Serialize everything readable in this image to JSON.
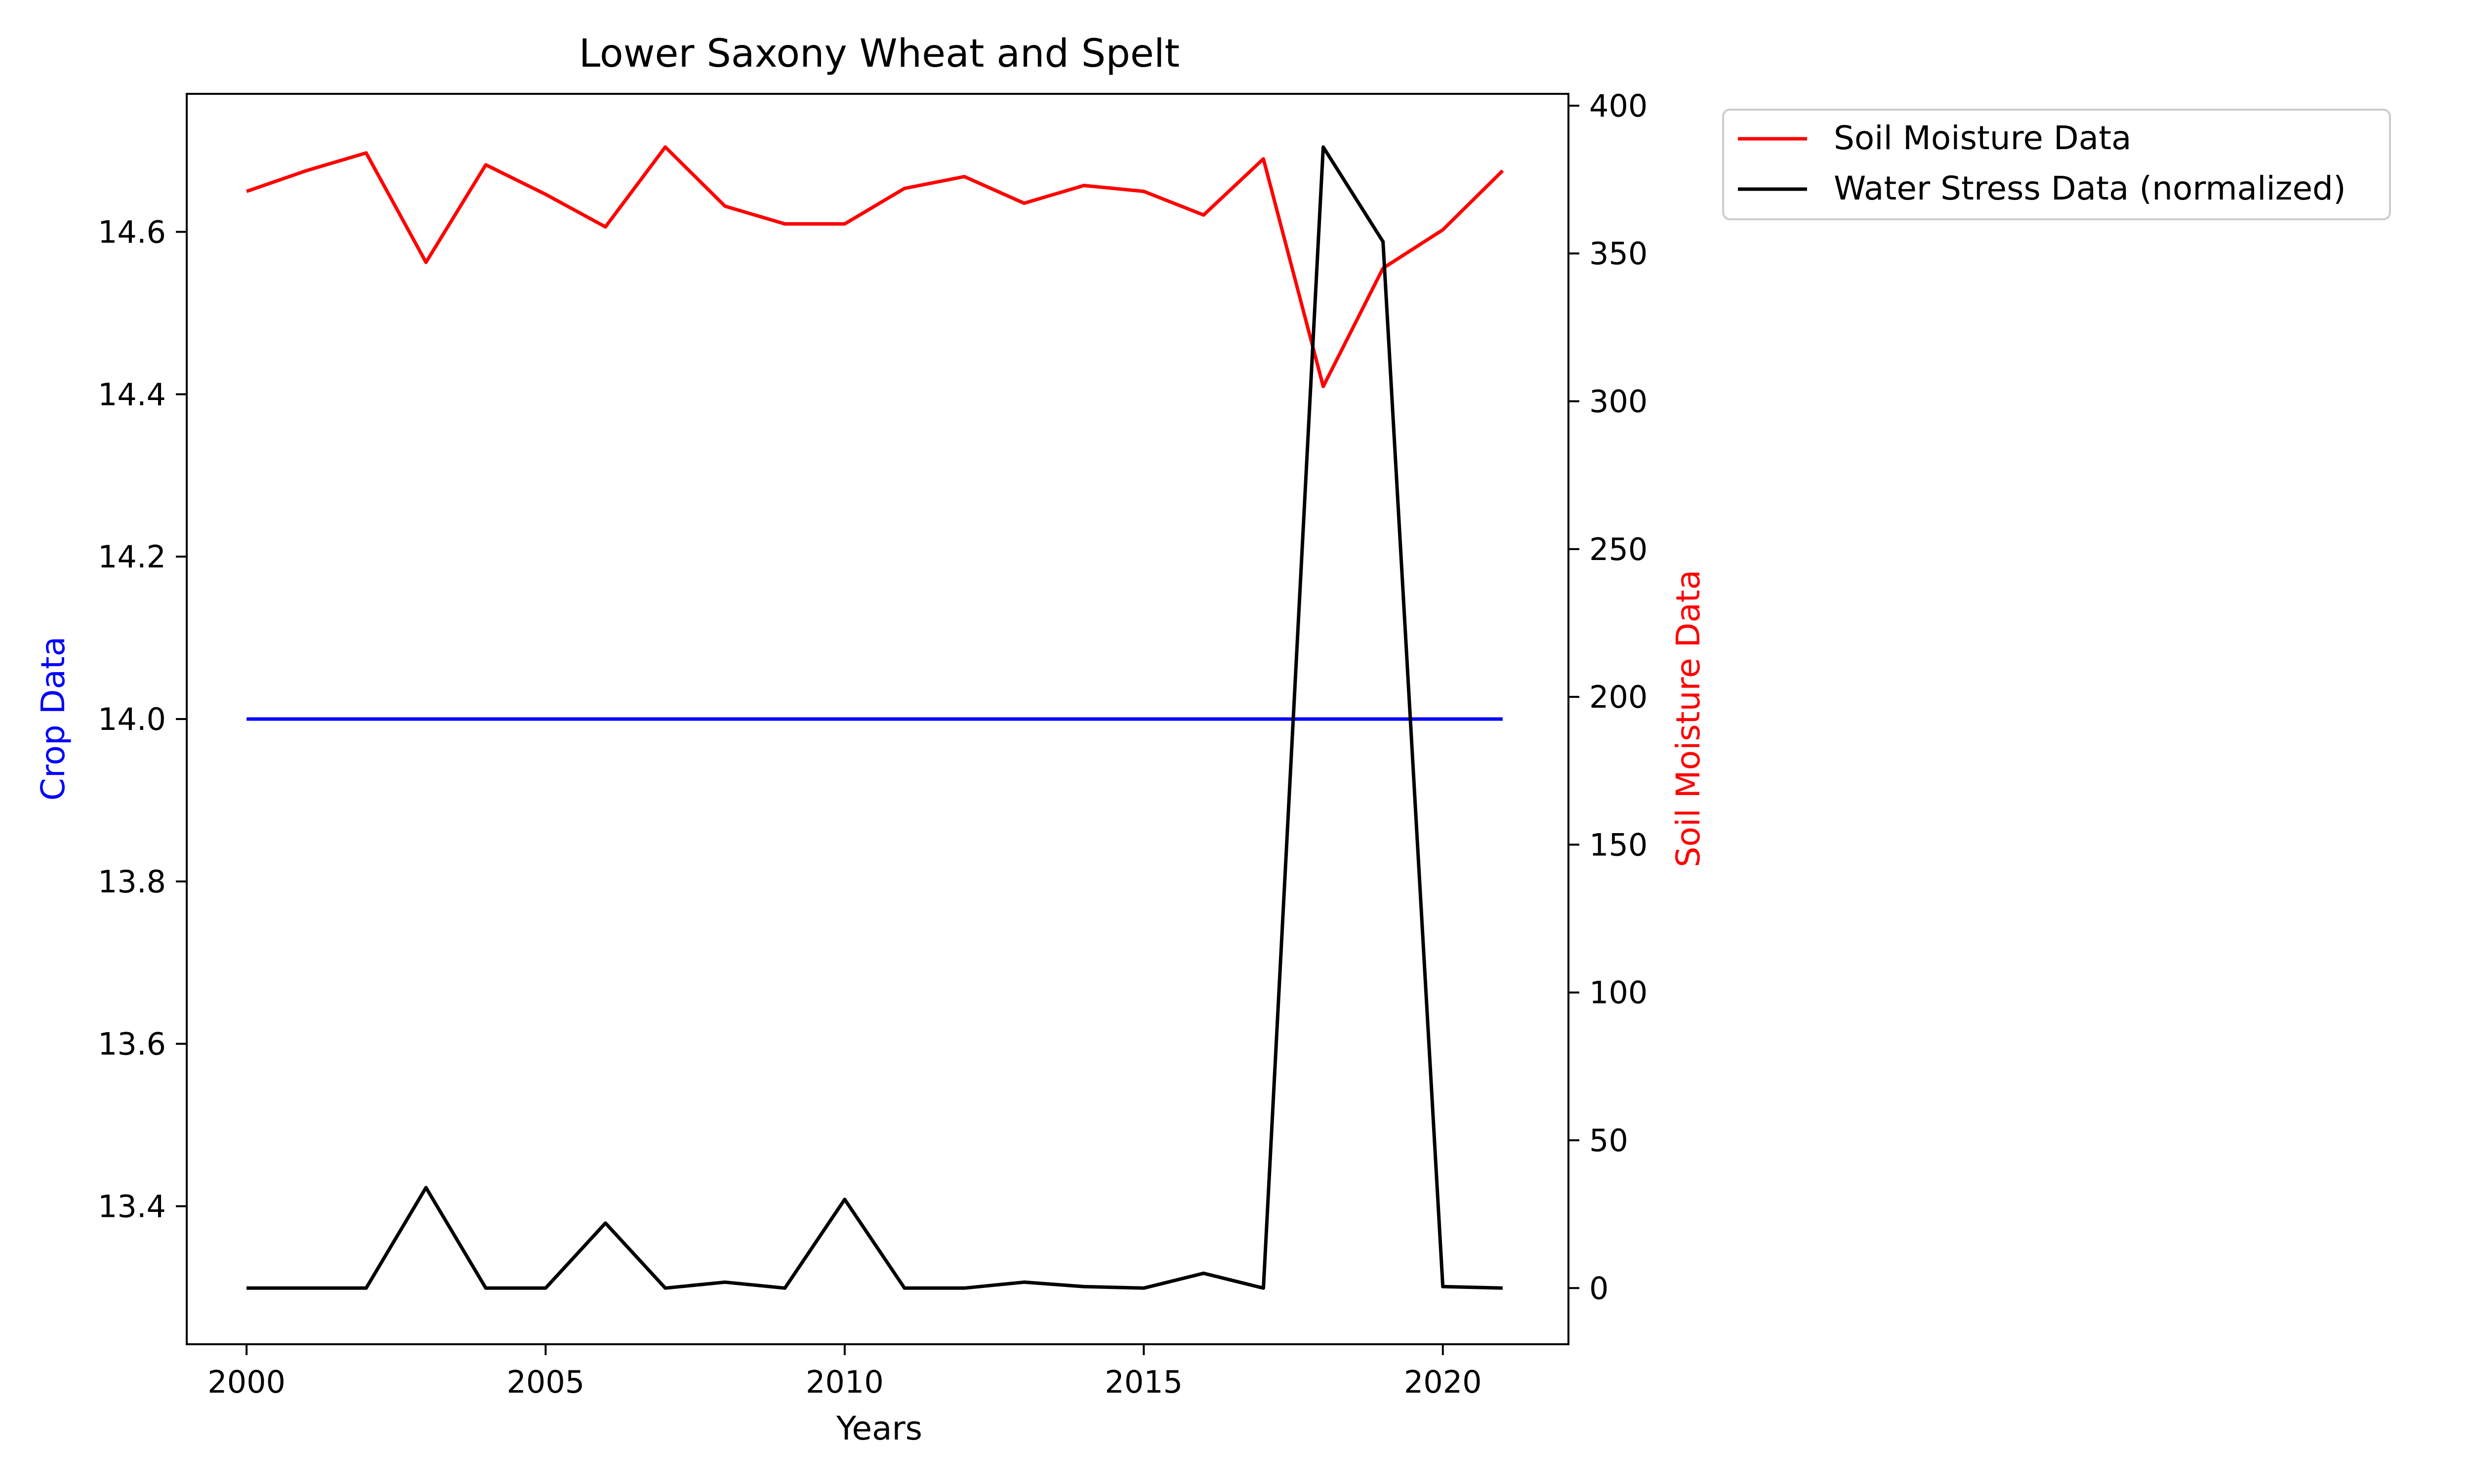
{
  "chart_data": {
    "type": "line",
    "title": "Lower Saxony Wheat and Spelt",
    "xlabel": "Years",
    "ylabel_left": "Crop Data",
    "ylabel_right": "Soil Moisture Data",
    "xlim": [
      1999,
      2022.1
    ],
    "ylim_left": [
      13.23,
      14.77
    ],
    "ylim_right": [
      -19,
      404
    ],
    "x_ticks": [
      2000,
      2005,
      2010,
      2015,
      2020
    ],
    "y_ticks_left": [
      13.4,
      13.6,
      13.8,
      14.0,
      14.2,
      14.4,
      14.6
    ],
    "y_ticks_right": [
      0,
      50,
      100,
      150,
      200,
      250,
      300,
      350,
      400
    ],
    "legend_position": "outside-top-right",
    "x": [
      2000,
      2001,
      2002,
      2003,
      2004,
      2005,
      2006,
      2007,
      2008,
      2009,
      2010,
      2011,
      2012,
      2013,
      2014,
      2015,
      2016,
      2017,
      2018,
      2019,
      2020,
      2021
    ],
    "series": [
      {
        "id": "crop",
        "axis": "left",
        "color": "#0000ff",
        "values": [
          14.0,
          14.0,
          14.0,
          14.0,
          14.0,
          14.0,
          14.0,
          14.0,
          14.0,
          14.0,
          14.0,
          14.0,
          14.0,
          14.0,
          14.0,
          14.0,
          14.0,
          14.0,
          14.0,
          14.0,
          14.0,
          14.0
        ]
      },
      {
        "id": "soil",
        "name": "Soil Moisture Data",
        "axis": "right",
        "color": "#ff0000",
        "values": [
          371,
          378,
          384,
          347,
          380,
          370,
          359,
          386,
          366,
          360,
          360,
          372,
          376,
          367,
          373,
          371,
          363,
          382,
          305,
          345,
          358,
          378
        ]
      },
      {
        "id": "stress",
        "name": "Water Stress Data (normalized)",
        "axis": "right",
        "color": "#000000",
        "values": [
          0,
          0,
          0,
          34,
          0,
          0,
          22,
          0,
          2,
          0,
          30,
          0,
          0,
          2,
          0.5,
          0,
          5,
          0,
          386,
          354,
          0.5,
          0
        ]
      }
    ]
  }
}
